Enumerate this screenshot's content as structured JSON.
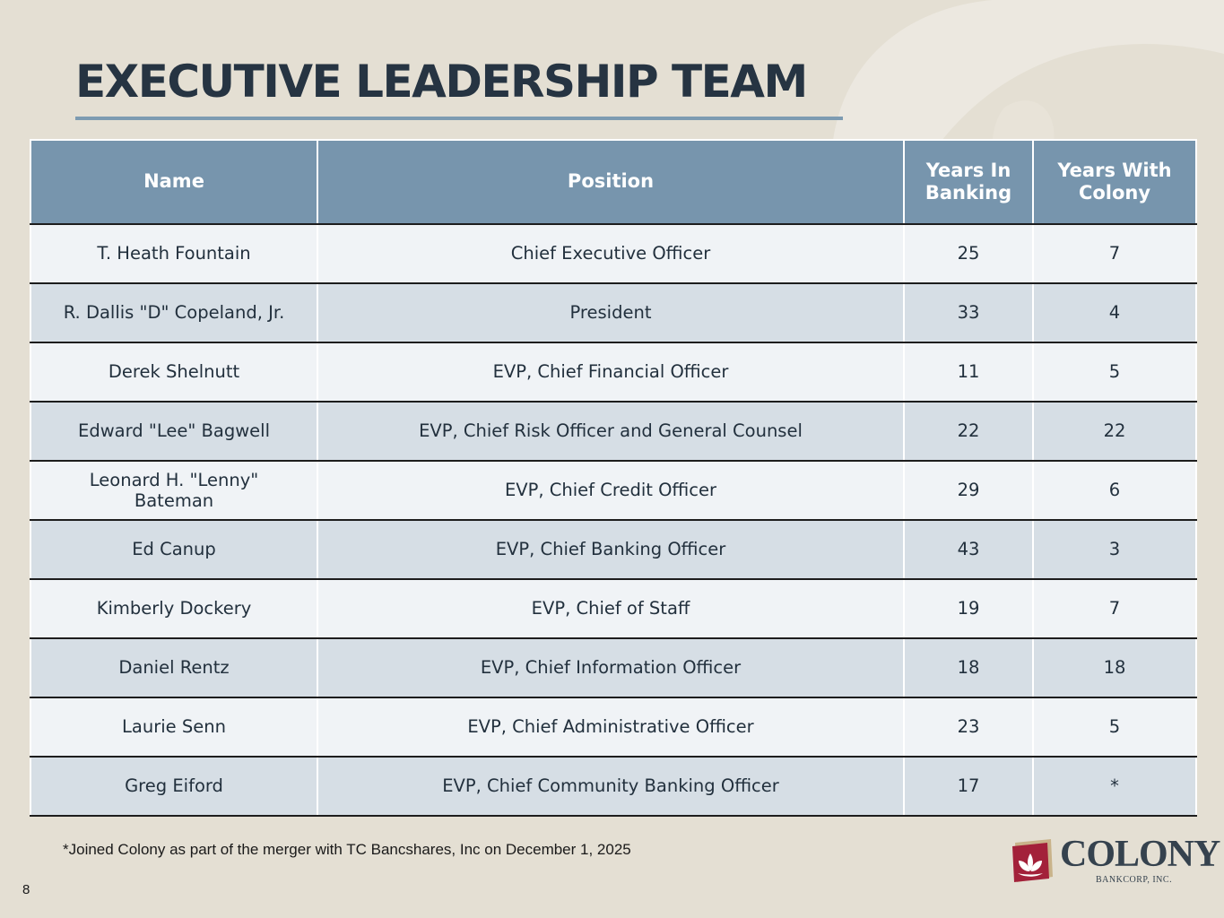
{
  "page": {
    "title": "EXECUTIVE LEADERSHIP TEAM",
    "footnote": "*Joined Colony as part of the merger with TC Bancshares, Inc on December 1, 2025",
    "page_number": "8"
  },
  "table": {
    "headers": {
      "name": "Name",
      "position": "Position",
      "years_banking": "Years In Banking",
      "years_colony": "Years With Colony"
    },
    "rows": [
      {
        "name": "T. Heath Fountain",
        "position": "Chief Executive Officer",
        "years_banking": "25",
        "years_colony": "7"
      },
      {
        "name": "R. Dallis \"D\" Copeland, Jr.",
        "position": "President",
        "years_banking": "33",
        "years_colony": "4"
      },
      {
        "name": "Derek Shelnutt",
        "position": "EVP, Chief Financial Officer",
        "years_banking": "11",
        "years_colony": "5"
      },
      {
        "name": "Edward \"Lee\" Bagwell",
        "position": "EVP, Chief Risk Officer and General Counsel",
        "years_banking": "22",
        "years_colony": "22"
      },
      {
        "name": "Leonard H. \"Lenny\" Bateman",
        "position": "EVP, Chief Credit Officer",
        "years_banking": "29",
        "years_colony": "6"
      },
      {
        "name": "Ed Canup",
        "position": "EVP, Chief Banking Officer",
        "years_banking": "43",
        "years_colony": "3"
      },
      {
        "name": "Kimberly Dockery",
        "position": "EVP, Chief of Staff",
        "years_banking": "19",
        "years_colony": "7"
      },
      {
        "name": "Daniel Rentz",
        "position": "EVP, Chief Information Officer",
        "years_banking": "18",
        "years_colony": "18"
      },
      {
        "name": "Laurie Senn",
        "position": "EVP, Chief Administrative Officer",
        "years_banking": "23",
        "years_colony": "5"
      },
      {
        "name": "Greg Eiford",
        "position": "EVP, Chief Community Banking Officer",
        "years_banking": "17",
        "years_colony": "*"
      }
    ]
  },
  "logo": {
    "wordmark": "COLONY",
    "subtitle": "BANKCORP, INC.",
    "icon": "lotus-logo-icon"
  },
  "colors": {
    "background": "#e4dfd3",
    "header_fill": "#7795ad",
    "title_text": "#263442",
    "row_light": "#f0f3f6",
    "row_dark": "#d6dee5",
    "logo_red": "#a3213a"
  }
}
